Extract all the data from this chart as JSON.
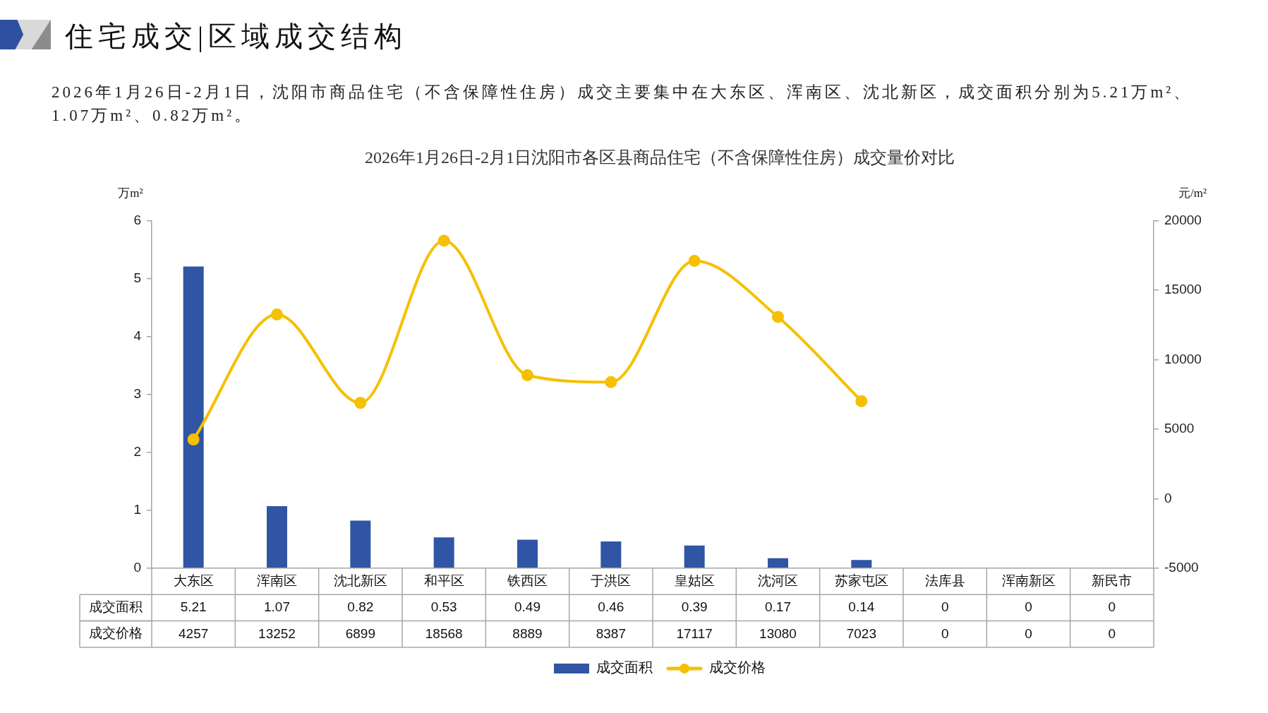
{
  "chart_data": {
    "type": "bar",
    "title": "2026年1月26日-2月1日沈阳市各区县商品住宅（不含保障性住房）成交量价对比",
    "ylabel": "万m²",
    "y2label": "元/m²",
    "annotations": [
      "住宅成交|区域成交结构",
      "2026年1月26日-2月1日，沈阳市商品住宅（不含保障性住房）成交主要集中在大东区、浑南区、沈北新区，成交面积分别为5.21万m²、1.07万m²、0.82万m²。"
    ],
    "categories": [
      "大东区",
      "浑南区",
      "沈北新区",
      "和平区",
      "铁西区",
      "于洪区",
      "皇姑区",
      "沈河区",
      "苏家屯区",
      "法库县",
      "浑南新区",
      "新民市"
    ],
    "series": [
      {
        "name": "成交面积",
        "color": "#2f55a4",
        "values": [
          5.21,
          1.07,
          0.82,
          0.53,
          0.49,
          0.46,
          0.39,
          0.17,
          0.14,
          0,
          0,
          0
        ],
        "value_labels": [
          "5.21",
          "1.07",
          "0.82",
          "0.53",
          "0.49",
          "0.46",
          "0.39",
          "0.17",
          "0.14",
          "0",
          "0",
          "0"
        ]
      },
      {
        "name": "成交价格",
        "type": "line",
        "axis": "y2",
        "color": "#f5c000",
        "marker": "circle",
        "values": [
          4257,
          13252,
          6899,
          18568,
          8889,
          8387,
          17117,
          13080,
          7023,
          null,
          null,
          null
        ],
        "value_labels": [
          "4257",
          "13252",
          "6899",
          "18568",
          "8889",
          "8387",
          "17117",
          "13080",
          "7023",
          "0",
          "0",
          "0"
        ]
      }
    ],
    "ylim": [
      0,
      6
    ],
    "yticks": [
      0,
      1,
      2,
      3,
      4,
      5,
      6
    ],
    "y2lim": [
      -5000,
      20000
    ],
    "y2ticks": [
      -5000,
      0,
      5000,
      10000,
      15000,
      20000
    ],
    "legend": "bottom"
  }
}
